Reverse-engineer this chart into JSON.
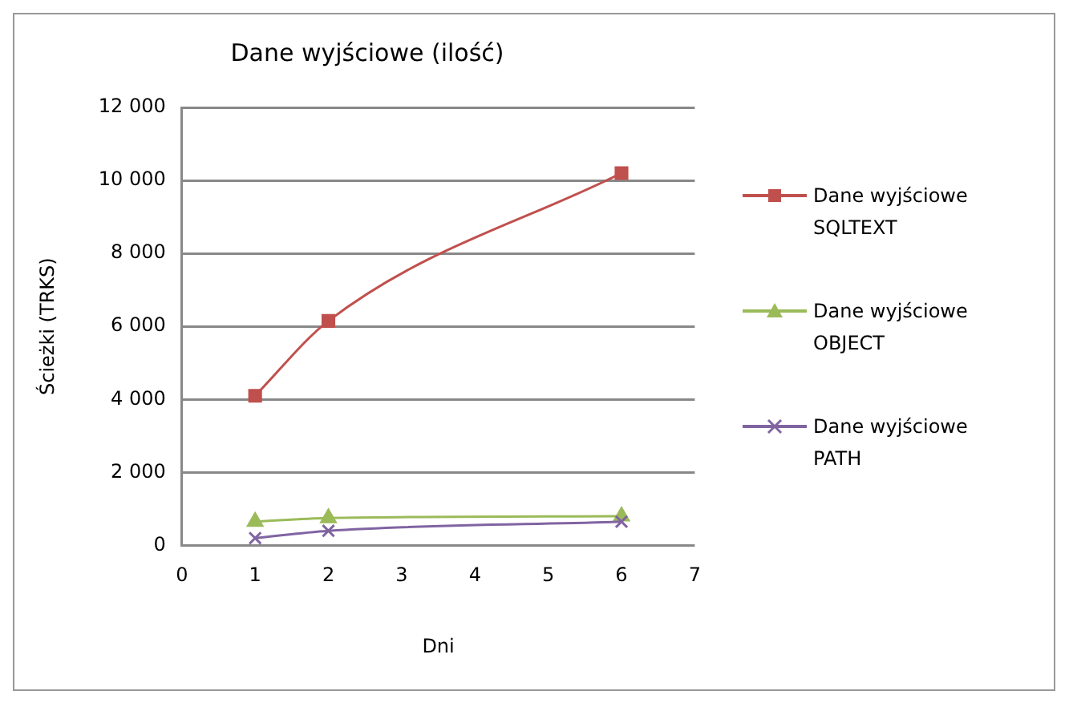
{
  "chart_data": {
    "type": "line",
    "title": "Dane wyjściowe (ilość)",
    "xlabel": "Dni",
    "ylabel": "Ścieżki (TRKS)",
    "series": [
      {
        "name": "Dane wyjściowe SQLTEXT",
        "color": "#c0504d",
        "marker": "square",
        "x": [
          1,
          2,
          6
        ],
        "values": [
          4100,
          6150,
          10200
        ]
      },
      {
        "name": "Dane wyjściowe OBJECT",
        "color": "#9bbb59",
        "marker": "triangle",
        "x": [
          1,
          2,
          6
        ],
        "values": [
          650,
          750,
          800
        ]
      },
      {
        "name": "Dane wyjściowe PATH",
        "color": "#8064a2",
        "marker": "cross",
        "x": [
          1,
          2,
          6
        ],
        "values": [
          200,
          400,
          650
        ]
      }
    ],
    "xlim": [
      0,
      7
    ],
    "xticks": [
      0,
      1,
      2,
      3,
      4,
      5,
      6,
      7
    ],
    "ylim": [
      0,
      12000
    ],
    "yticks": [
      0,
      {
        "value": 2000,
        "label": "2 000"
      },
      {
        "value": 4000,
        "label": "4 000"
      },
      {
        "value": 6000,
        "label": "6 000"
      },
      {
        "value": 8000,
        "label": "8 000"
      },
      {
        "value": 10000,
        "label": "10 000"
      },
      {
        "value": 12000,
        "label": "12 000"
      }
    ],
    "grid": "y",
    "legend": "right"
  }
}
